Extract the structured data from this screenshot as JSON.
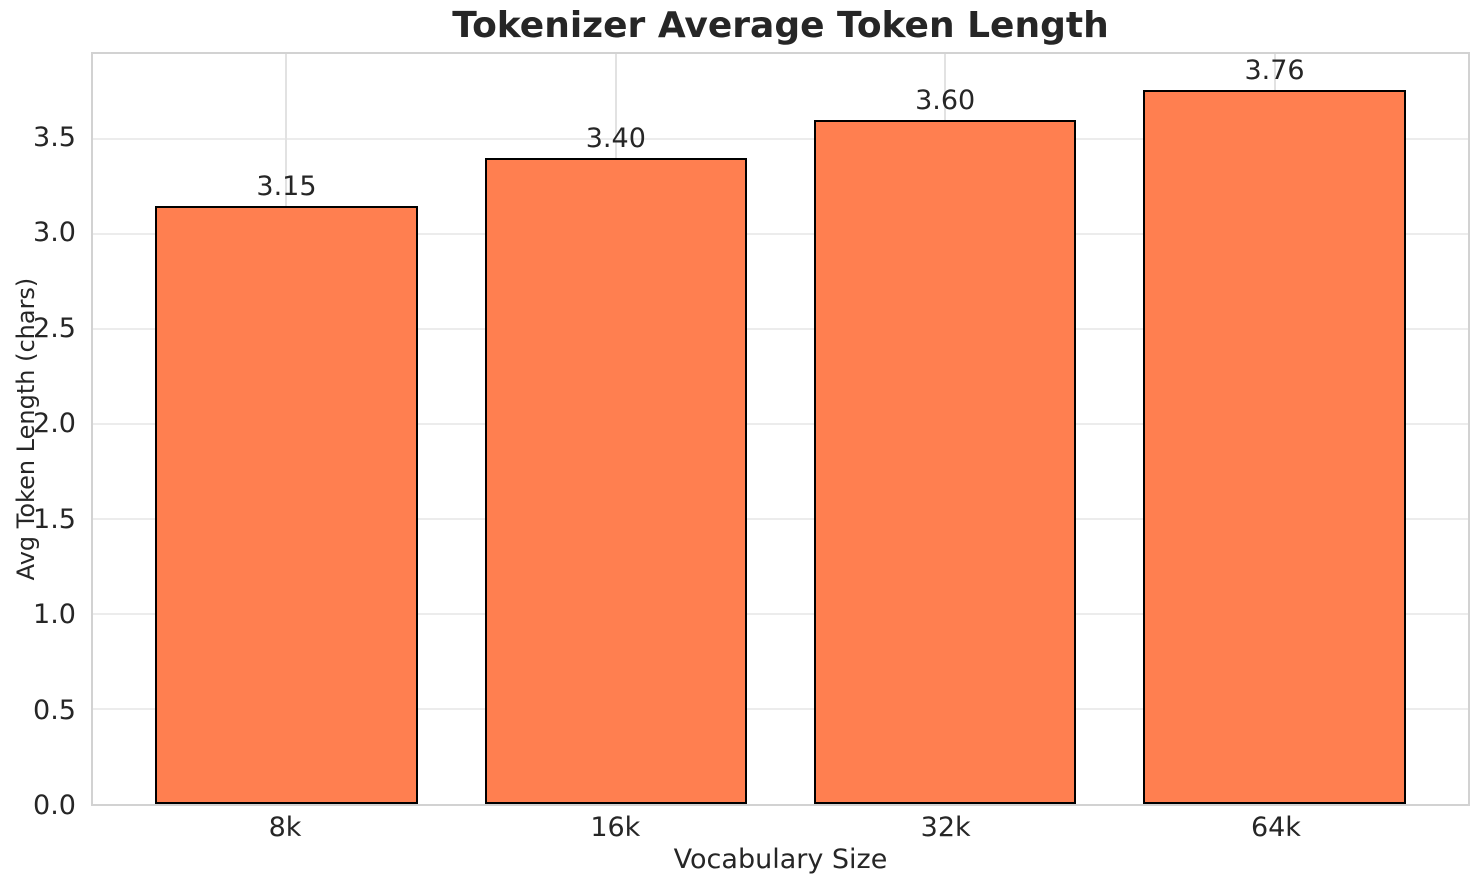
{
  "chart_data": {
    "type": "bar",
    "title": "Tokenizer Average Token Length",
    "xlabel": "Vocabulary Size",
    "ylabel": "Avg Token Length (chars)",
    "categories": [
      "8k",
      "16k",
      "32k",
      "64k"
    ],
    "values": [
      3.15,
      3.4,
      3.6,
      3.76
    ],
    "value_labels": [
      "3.15",
      "3.40",
      "3.60",
      "3.76"
    ],
    "ylim": [
      0,
      3.95
    ],
    "yticks": [
      0,
      0.5,
      1,
      1.5,
      2,
      2.5,
      3,
      3.5
    ],
    "ytick_labels": [
      "0.0",
      "0.5",
      "1.0",
      "1.5",
      "2.0",
      "2.5",
      "3.0",
      "3.5"
    ],
    "grid": true,
    "legend": "none",
    "colors": {
      "bar_fill": "#FF7F50",
      "bar_edge": "#000000",
      "h_grid_line": "#ececec",
      "v_grid_line": "#e2e2e2",
      "spine": "#d2d2d2",
      "text": "#262626",
      "background": "#ffffff"
    }
  }
}
